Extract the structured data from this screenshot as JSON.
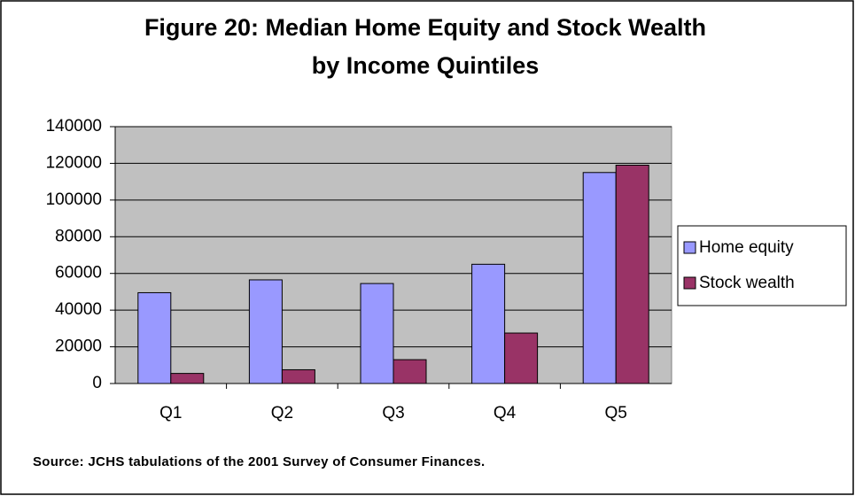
{
  "chart_data": {
    "type": "bar",
    "title": [
      "Figure 20:  Median Home Equity and Stock Wealth",
      "by Income Quintiles"
    ],
    "source": "Source: JCHS tabulations of the 2001 Survey of Consumer Finances.",
    "categories": [
      "Q1",
      "Q2",
      "Q3",
      "Q4",
      "Q5"
    ],
    "series": [
      {
        "name": "Home equity",
        "color": "#9999ff",
        "values": [
          49500,
          56500,
          54500,
          65000,
          115000
        ]
      },
      {
        "name": "Stock wealth",
        "color": "#993366",
        "values": [
          5500,
          7500,
          13000,
          27500,
          119000
        ]
      }
    ],
    "ylim": [
      0,
      140000
    ],
    "yticks": [
      0,
      20000,
      40000,
      60000,
      80000,
      100000,
      120000,
      140000
    ],
    "grid": true,
    "plot_background": "#c0c0c0",
    "legend": "right"
  }
}
